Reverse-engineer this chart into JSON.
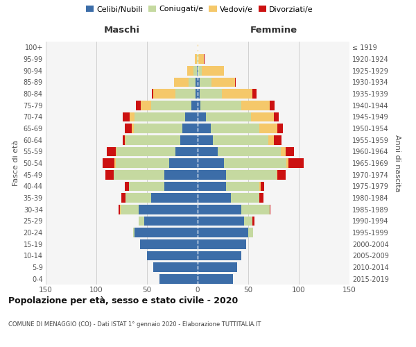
{
  "age_groups": [
    "0-4",
    "5-9",
    "10-14",
    "15-19",
    "20-24",
    "25-29",
    "30-34",
    "35-39",
    "40-44",
    "45-49",
    "50-54",
    "55-59",
    "60-64",
    "65-69",
    "70-74",
    "75-79",
    "80-84",
    "85-89",
    "90-94",
    "95-99",
    "100+"
  ],
  "birth_years": [
    "2015-2019",
    "2010-2014",
    "2005-2009",
    "2000-2004",
    "1995-1999",
    "1990-1994",
    "1985-1989",
    "1980-1984",
    "1975-1979",
    "1970-1974",
    "1965-1969",
    "1960-1964",
    "1955-1959",
    "1950-1954",
    "1945-1949",
    "1940-1944",
    "1935-1939",
    "1930-1934",
    "1925-1929",
    "1920-1924",
    "≤ 1919"
  ],
  "colors": {
    "celibi": "#3c6da8",
    "coniugati": "#c5d9a0",
    "vedovi": "#f5c86a",
    "divorziati": "#cc1111"
  },
  "maschi": {
    "celibi": [
      38,
      44,
      50,
      57,
      62,
      53,
      58,
      46,
      33,
      33,
      28,
      22,
      17,
      15,
      12,
      6,
      2,
      2,
      1,
      0,
      0
    ],
    "coniugati": [
      0,
      0,
      0,
      0,
      2,
      5,
      18,
      25,
      35,
      50,
      53,
      58,
      54,
      48,
      50,
      40,
      20,
      7,
      3,
      1,
      0
    ],
    "vedovi": [
      0,
      0,
      0,
      0,
      0,
      0,
      1,
      0,
      0,
      0,
      1,
      1,
      1,
      2,
      5,
      10,
      22,
      14,
      6,
      2,
      0
    ],
    "divorziati": [
      0,
      0,
      0,
      0,
      0,
      0,
      1,
      4,
      4,
      8,
      12,
      9,
      2,
      7,
      7,
      5,
      1,
      0,
      0,
      0,
      0
    ]
  },
  "femmine": {
    "celibi": [
      35,
      39,
      43,
      48,
      50,
      46,
      43,
      33,
      28,
      28,
      26,
      20,
      15,
      13,
      8,
      3,
      2,
      2,
      0,
      0,
      0
    ],
    "coniugati": [
      0,
      0,
      0,
      0,
      5,
      8,
      28,
      28,
      33,
      50,
      62,
      62,
      55,
      48,
      45,
      40,
      22,
      12,
      4,
      1,
      0
    ],
    "vedovi": [
      0,
      0,
      0,
      0,
      0,
      0,
      0,
      0,
      1,
      1,
      2,
      5,
      5,
      18,
      22,
      28,
      30,
      23,
      22,
      5,
      1
    ],
    "divorziati": [
      0,
      0,
      0,
      0,
      0,
      2,
      1,
      4,
      4,
      8,
      15,
      8,
      8,
      5,
      5,
      5,
      4,
      1,
      0,
      1,
      0
    ]
  },
  "xlim": 150,
  "title": "Popolazione per età, sesso e stato civile - 2020",
  "subtitle": "COMUNE DI MENAGGIO (CO) - Dati ISTAT 1° gennaio 2020 - Elaborazione TUTTITALIA.IT",
  "xlabel_left": "Maschi",
  "xlabel_right": "Femmine",
  "ylabel_left": "Fasce di età",
  "ylabel_right": "Anni di nascita",
  "bg_color": "#f5f5f5",
  "grid_color": "#d0d0d0",
  "plot_bg": "#eeeeee"
}
